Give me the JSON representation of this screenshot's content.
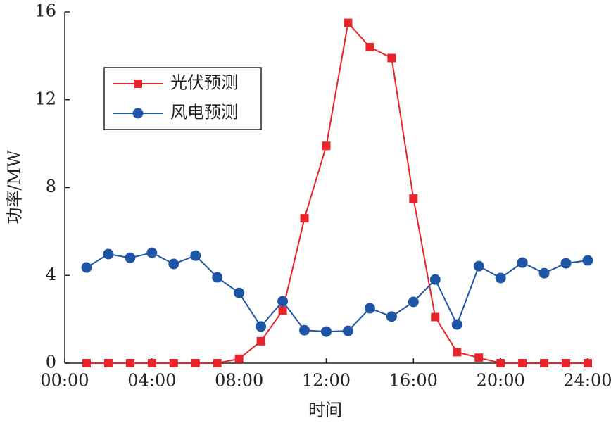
{
  "chart_data": {
    "type": "line",
    "x_label": "时间",
    "y_label": "功率/MW",
    "x": [
      1,
      2,
      3,
      4,
      5,
      6,
      7,
      8,
      9,
      10,
      11,
      12,
      13,
      14,
      15,
      16,
      17,
      18,
      19,
      20,
      21,
      22,
      23,
      24
    ],
    "series": [
      {
        "name": "光伏预测",
        "color": "#e8242b",
        "marker": "square",
        "values": [
          0,
          0,
          0,
          0,
          0,
          0,
          0,
          0.2,
          1.0,
          2.4,
          6.6,
          9.9,
          15.5,
          14.4,
          13.9,
          7.5,
          2.1,
          0.5,
          0.25,
          0,
          0,
          0,
          0,
          0
        ]
      },
      {
        "name": "风电预测",
        "color": "#1f55a5",
        "marker": "circle",
        "values": [
          4.36,
          4.97,
          4.8,
          5.03,
          4.52,
          4.9,
          3.91,
          3.2,
          1.67,
          2.82,
          1.5,
          1.44,
          1.47,
          2.5,
          2.12,
          2.79,
          3.81,
          1.76,
          4.42,
          3.88,
          4.58,
          4.1,
          4.55,
          4.68
        ]
      }
    ],
    "xlim": [
      0,
      24
    ],
    "xticks": [
      {
        "value": 0,
        "label": "00:00"
      },
      {
        "value": 4,
        "label": "04:00"
      },
      {
        "value": 8,
        "label": "08:00"
      },
      {
        "value": 12,
        "label": "12:00"
      },
      {
        "value": 16,
        "label": "16:00"
      },
      {
        "value": 20,
        "label": "20:00"
      },
      {
        "value": 24,
        "label": "24:00"
      }
    ],
    "ylim": [
      0,
      16
    ],
    "yticks": [
      0,
      4,
      8,
      12,
      16
    ],
    "legend": "upper left"
  }
}
